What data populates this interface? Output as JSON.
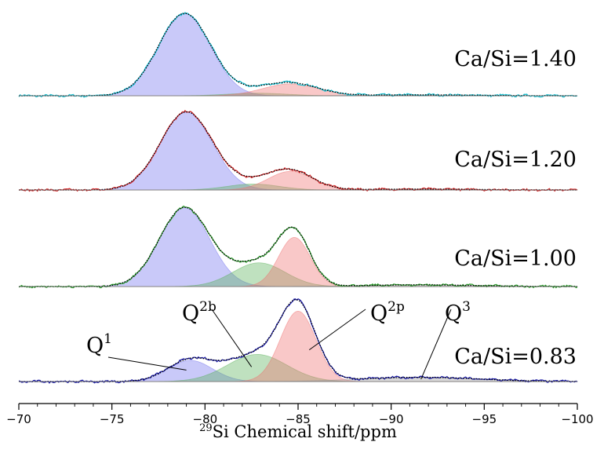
{
  "chart_data": {
    "type": "line",
    "title": "",
    "xlabel_sup": "29",
    "xlabel": "Si Chemical shift/ppm",
    "ylabel": "",
    "xlim": [
      -70,
      -100
    ],
    "x_reversed": true,
    "xticks": [
      -70,
      -75,
      -80,
      -85,
      -90,
      -95,
      -100
    ],
    "xtick_labels": [
      "−70",
      "−75",
      "−80",
      "−85",
      "−90",
      "−95",
      "−100"
    ],
    "grid": false,
    "component_colors": {
      "Q1": "#7070ee",
      "Q2b": "#58b058",
      "Q2p": "#f06e6e",
      "Q3": "#9a9a9a",
      "fit_total": "#000000"
    },
    "spectra": [
      {
        "label": "Ca/Si=1.40",
        "line_color": "#17becf",
        "components": [
          {
            "species": "Q1",
            "center": -78.9,
            "amplitude": 0.97,
            "width": 1.4
          },
          {
            "species": "Q2b",
            "center": -82.8,
            "amplitude": 0.03,
            "width": 1.6
          },
          {
            "species": "Q2p",
            "center": -84.6,
            "amplitude": 0.14,
            "width": 1.5
          },
          {
            "species": "Q3",
            "center": -91.5,
            "amplitude": 0.01,
            "width": 3.0
          }
        ]
      },
      {
        "label": "Ca/Si=1.20",
        "line_color": "#d62728",
        "components": [
          {
            "species": "Q1",
            "center": -79.0,
            "amplitude": 0.92,
            "width": 1.4
          },
          {
            "species": "Q2b",
            "center": -82.6,
            "amplitude": 0.07,
            "width": 1.4
          },
          {
            "species": "Q2p",
            "center": -84.6,
            "amplitude": 0.22,
            "width": 1.2
          },
          {
            "species": "Q3",
            "center": -91.5,
            "amplitude": 0.01,
            "width": 3.0
          }
        ]
      },
      {
        "label": "Ca/Si=1.00",
        "line_color": "#2ca02c",
        "components": [
          {
            "species": "Q1",
            "center": -78.9,
            "amplitude": 0.93,
            "width": 1.35
          },
          {
            "species": "Q2b",
            "center": -82.9,
            "amplitude": 0.28,
            "width": 1.4
          },
          {
            "species": "Q2p",
            "center": -84.8,
            "amplitude": 0.58,
            "width": 0.85
          },
          {
            "species": "Q3",
            "center": -91.5,
            "amplitude": 0.02,
            "width": 3.0
          }
        ]
      },
      {
        "label": "Ca/Si=0.83",
        "line_color": "#1a1aaa",
        "components": [
          {
            "species": "Q1",
            "center": -79.2,
            "amplitude": 0.25,
            "width": 1.2
          },
          {
            "species": "Q2b",
            "center": -82.8,
            "amplitude": 0.32,
            "width": 1.6
          },
          {
            "species": "Q2p",
            "center": -85.0,
            "amplitude": 0.83,
            "width": 0.95
          },
          {
            "species": "Q3",
            "center": -91.5,
            "amplitude": 0.05,
            "width": 3.2
          }
        ]
      }
    ],
    "peak_annotations": [
      {
        "base": "Q",
        "sup": "1",
        "points_to": {
          "spectrum": 3,
          "x": -79.0
        }
      },
      {
        "base": "Q",
        "sup": "2b",
        "points_to": {
          "spectrum": 3,
          "x": -82.5
        }
      },
      {
        "base": "Q",
        "sup": "2p",
        "points_to": {
          "spectrum": 3,
          "x": -85.6
        }
      },
      {
        "base": "Q",
        "sup": "3",
        "points_to": {
          "spectrum": 3,
          "x": -91.6
        }
      }
    ]
  }
}
